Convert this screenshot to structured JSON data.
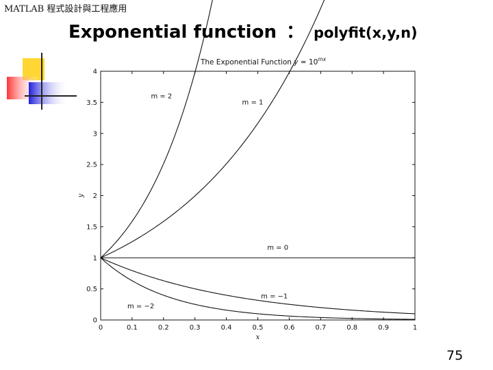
{
  "slide": {
    "course_label": "MATLAB 程式設計與工程應用",
    "title_main": "Exponential function",
    "title_separator": "：",
    "title_function": "polyfit(x,y,n)",
    "page_number": "75"
  },
  "chart_data": {
    "type": "line",
    "title": "The Exponential Function y = 10^mx",
    "title_parts": {
      "text": "The Exponential Function ",
      "lhs": "y",
      "eq": " = 10",
      "sup": "mx"
    },
    "xlabel": "x",
    "ylabel": "y",
    "xlim": [
      0,
      1
    ],
    "ylim": [
      0,
      4
    ],
    "xticks": [
      0,
      0.1,
      0.2,
      0.3,
      0.4,
      0.5,
      0.6,
      0.7,
      0.8,
      0.9,
      1
    ],
    "xtick_labels": [
      "0",
      "0.1",
      "0.2",
      "0.3",
      "0.4",
      "0.5",
      "0.6",
      "0.7",
      "0.8",
      "0.9",
      "1"
    ],
    "yticks": [
      0,
      0.5,
      1,
      1.5,
      2,
      2.5,
      3,
      3.5,
      4
    ],
    "ytick_labels": [
      "0",
      "0.5",
      "1",
      "1.5",
      "2",
      "2.5",
      "3",
      "3.5",
      "4"
    ],
    "grid": false,
    "function": "y = 10^(m*x)",
    "series": [
      {
        "m": 2,
        "annotation": "m = 2",
        "ann_x": 0.16,
        "ann_y": 3.6
      },
      {
        "m": 1,
        "annotation": "m = 1",
        "ann_x": 0.45,
        "ann_y": 3.5
      },
      {
        "m": 0,
        "annotation": "m = 0",
        "ann_x": 0.53,
        "ann_y": 1.16
      },
      {
        "m": -1,
        "annotation": "m = −1",
        "ann_x": 0.51,
        "ann_y": 0.38
      },
      {
        "m": -2,
        "annotation": "m = −2",
        "ann_x": 0.085,
        "ann_y": 0.22
      }
    ],
    "line_color": "#111111"
  }
}
